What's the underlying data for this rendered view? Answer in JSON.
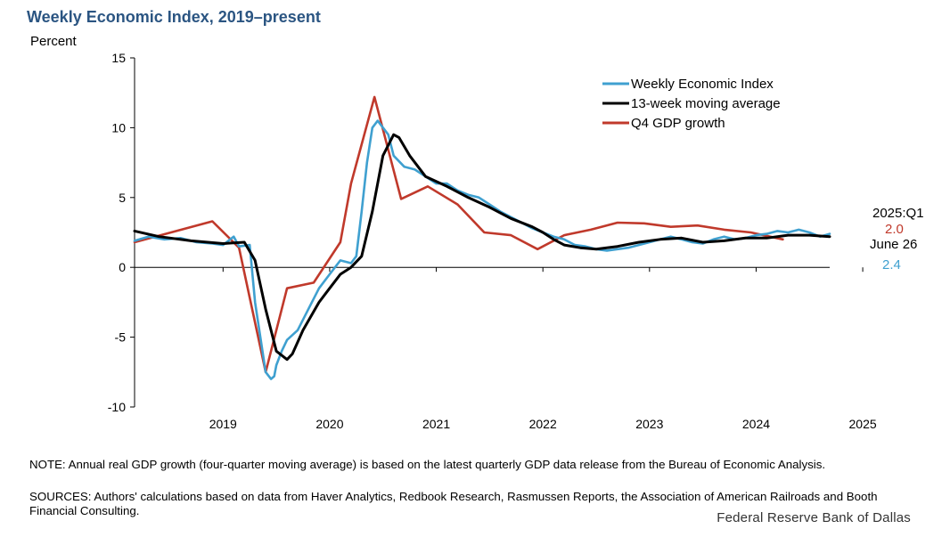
{
  "title": "Weekly Economic Index, 2019–present",
  "side_labels": {
    "gdp_period": "2025:Q1",
    "gdp_value": "2.0",
    "wei_date": "June 26",
    "wei_value": "2.4"
  },
  "note": "NOTE: Annual real GDP growth (four-quarter moving average) is based on the latest quarterly GDP data release from the Bureau of Economic Analysis.",
  "sources": "SOURCES: Authors' calculations based on data from Haver Analytics, Redbook Research, Rasmussen Reports, the Association of American Railroads and Booth Financial Consulting.",
  "brand": "Federal Reserve Bank of Dallas",
  "colors": {
    "wei": "#3fa0d0",
    "ma": "#000000",
    "gdp": "#c0392b",
    "title": "#2b5582"
  },
  "chart_data": {
    "type": "line",
    "title": "Weekly Economic Index, 2019–present",
    "ylabel": "Percent",
    "xlabel": "",
    "ylim": [
      -10,
      15
    ],
    "xlim": [
      2018.17,
      2024.69
    ],
    "yticks": [
      15,
      10,
      5,
      0,
      -5,
      -10
    ],
    "xticks": [
      2019,
      2020,
      2021,
      2022,
      2023,
      2024,
      2025
    ],
    "legend_position": "top-right",
    "series": [
      {
        "name": "Weekly Economic Index",
        "x": [
          2018.17,
          2018.3,
          2018.45,
          2018.6,
          2018.75,
          2018.9,
          2019.0,
          2019.05,
          2019.1,
          2019.15,
          2019.25,
          2019.3,
          2019.4,
          2019.45,
          2019.48,
          2019.5,
          2019.55,
          2019.6,
          2019.7,
          2019.8,
          2019.9,
          2020.0,
          2020.1,
          2020.2,
          2020.25,
          2020.3,
          2020.35,
          2020.4,
          2020.45,
          2020.55,
          2020.6,
          2020.7,
          2020.8,
          2020.9,
          2021.0,
          2021.1,
          2021.2,
          2021.3,
          2021.4,
          2021.5,
          2021.6,
          2021.7,
          2021.8,
          2021.9,
          2022.0,
          2022.1,
          2022.2,
          2022.3,
          2022.4,
          2022.5,
          2022.6,
          2022.7,
          2022.8,
          2022.9,
          2023.0,
          2023.1,
          2023.2,
          2023.3,
          2023.4,
          2023.5,
          2023.6,
          2023.7,
          2023.8,
          2023.9,
          2024.0,
          2024.1,
          2024.2,
          2024.3,
          2024.4,
          2024.5,
          2024.6,
          2024.69
        ],
        "values": [
          1.9,
          2.2,
          2.0,
          2.1,
          1.8,
          1.7,
          1.6,
          1.9,
          2.2,
          1.5,
          1.6,
          -2.5,
          -7.5,
          -8.0,
          -7.8,
          -7.0,
          -6.0,
          -5.2,
          -4.5,
          -3.0,
          -1.5,
          -0.5,
          0.5,
          0.3,
          0.8,
          4.0,
          7.5,
          10.0,
          10.5,
          9.5,
          8.0,
          7.2,
          7.0,
          6.5,
          6.0,
          6.0,
          5.5,
          5.2,
          5.0,
          4.5,
          4.0,
          3.6,
          3.2,
          2.8,
          2.5,
          2.2,
          2.0,
          1.6,
          1.5,
          1.3,
          1.2,
          1.3,
          1.4,
          1.6,
          1.8,
          2.0,
          2.2,
          2.0,
          1.8,
          1.7,
          2.0,
          2.2,
          2.0,
          2.1,
          2.3,
          2.4,
          2.6,
          2.5,
          2.7,
          2.5,
          2.2,
          2.4
        ]
      },
      {
        "name": "13-week moving average",
        "x": [
          2018.17,
          2018.4,
          2018.7,
          2019.0,
          2019.2,
          2019.3,
          2019.4,
          2019.5,
          2019.6,
          2019.65,
          2019.75,
          2019.9,
          2020.0,
          2020.1,
          2020.2,
          2020.3,
          2020.4,
          2020.5,
          2020.6,
          2020.65,
          2020.75,
          2020.9,
          2021.1,
          2021.3,
          2021.5,
          2021.7,
          2021.9,
          2022.0,
          2022.1,
          2022.2,
          2022.35,
          2022.5,
          2022.7,
          2022.9,
          2023.1,
          2023.3,
          2023.5,
          2023.7,
          2023.9,
          2024.1,
          2024.3,
          2024.5,
          2024.69
        ],
        "values": [
          2.6,
          2.2,
          1.9,
          1.7,
          1.8,
          0.5,
          -3.0,
          -6.0,
          -6.6,
          -6.2,
          -4.5,
          -2.5,
          -1.5,
          -0.5,
          0.0,
          0.8,
          4.0,
          8.0,
          9.5,
          9.3,
          8.0,
          6.5,
          5.8,
          5.0,
          4.3,
          3.5,
          2.9,
          2.5,
          2.0,
          1.6,
          1.4,
          1.3,
          1.5,
          1.8,
          2.0,
          2.1,
          1.8,
          1.9,
          2.1,
          2.1,
          2.3,
          2.3,
          2.2
        ]
      },
      {
        "name": "Q4 GDP growth",
        "x": [
          2018.17,
          2018.9,
          2019.15,
          2019.4,
          2019.6,
          2019.85,
          2020.1,
          2020.2,
          2020.42,
          2020.67,
          2020.92,
          2021.2,
          2021.45,
          2021.7,
          2021.95,
          2022.2,
          2022.45,
          2022.7,
          2022.95,
          2023.2,
          2023.45,
          2023.7,
          2023.95,
          2024.25
        ],
        "values": [
          1.8,
          3.3,
          1.4,
          -7.5,
          -1.5,
          -1.1,
          1.8,
          6.0,
          12.2,
          4.9,
          5.8,
          4.5,
          2.5,
          2.3,
          1.3,
          2.3,
          2.7,
          3.2,
          3.15,
          2.9,
          3.0,
          2.7,
          2.5,
          2.0
        ]
      }
    ]
  }
}
